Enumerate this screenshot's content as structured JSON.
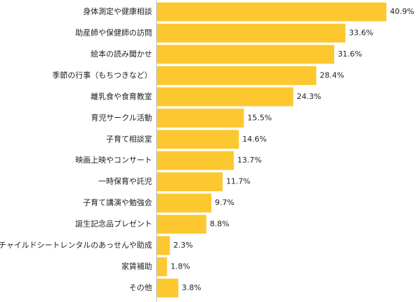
{
  "chart_data": {
    "type": "bar",
    "orientation": "horizontal",
    "categories": [
      "身体測定や健康相談",
      "助産師や保健師の訪問",
      "絵本の読み聞かせ",
      "季節の行事（もちつきなど）",
      "離乳食や食育教室",
      "育児サークル活動",
      "子育て相談室",
      "映画上映やコンサート",
      "一時保育や託児",
      "子育て講演や勉強会",
      "誕生記念品プレゼント",
      "チャイルドシートレンタルのあっせんや助成",
      "家賃補助",
      "その他"
    ],
    "values": [
      40.9,
      33.6,
      31.6,
      28.4,
      24.3,
      15.5,
      14.6,
      13.7,
      11.7,
      9.7,
      8.8,
      2.3,
      1.8,
      3.8
    ],
    "value_labels": [
      "40.9%",
      "33.6%",
      "31.6%",
      "28.4%",
      "24.3%",
      "15.5%",
      "14.6%",
      "13.7%",
      "11.7%",
      "9.7%",
      "8.8%",
      "2.3%",
      "1.8%",
      "3.8%"
    ],
    "color": "#fdc82f"
  }
}
